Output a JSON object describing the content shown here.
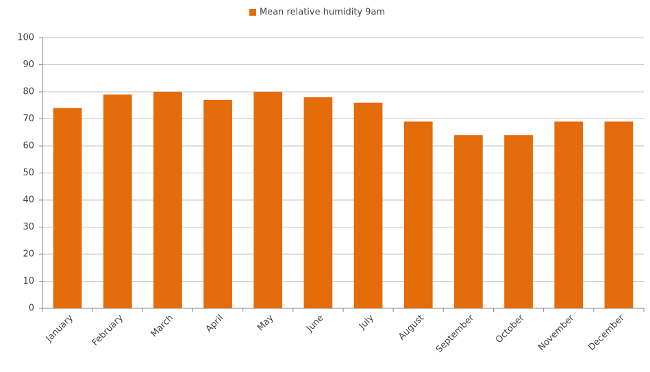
{
  "chart_data": {
    "type": "bar",
    "categories": [
      "January",
      "February",
      "March",
      "April",
      "May",
      "June",
      "July",
      "August",
      "September",
      "October",
      "November",
      "December"
    ],
    "series": [
      {
        "name": "Mean relative humidity 9am",
        "color": "#e46c0a",
        "values": [
          74,
          79,
          80,
          77,
          80,
          78,
          76,
          69,
          64,
          64,
          69,
          69
        ]
      }
    ],
    "ylim": [
      0,
      100
    ],
    "yticks": [
      0,
      10,
      20,
      30,
      40,
      50,
      60,
      70,
      80,
      90,
      100
    ],
    "grid": true,
    "legend": "top"
  }
}
